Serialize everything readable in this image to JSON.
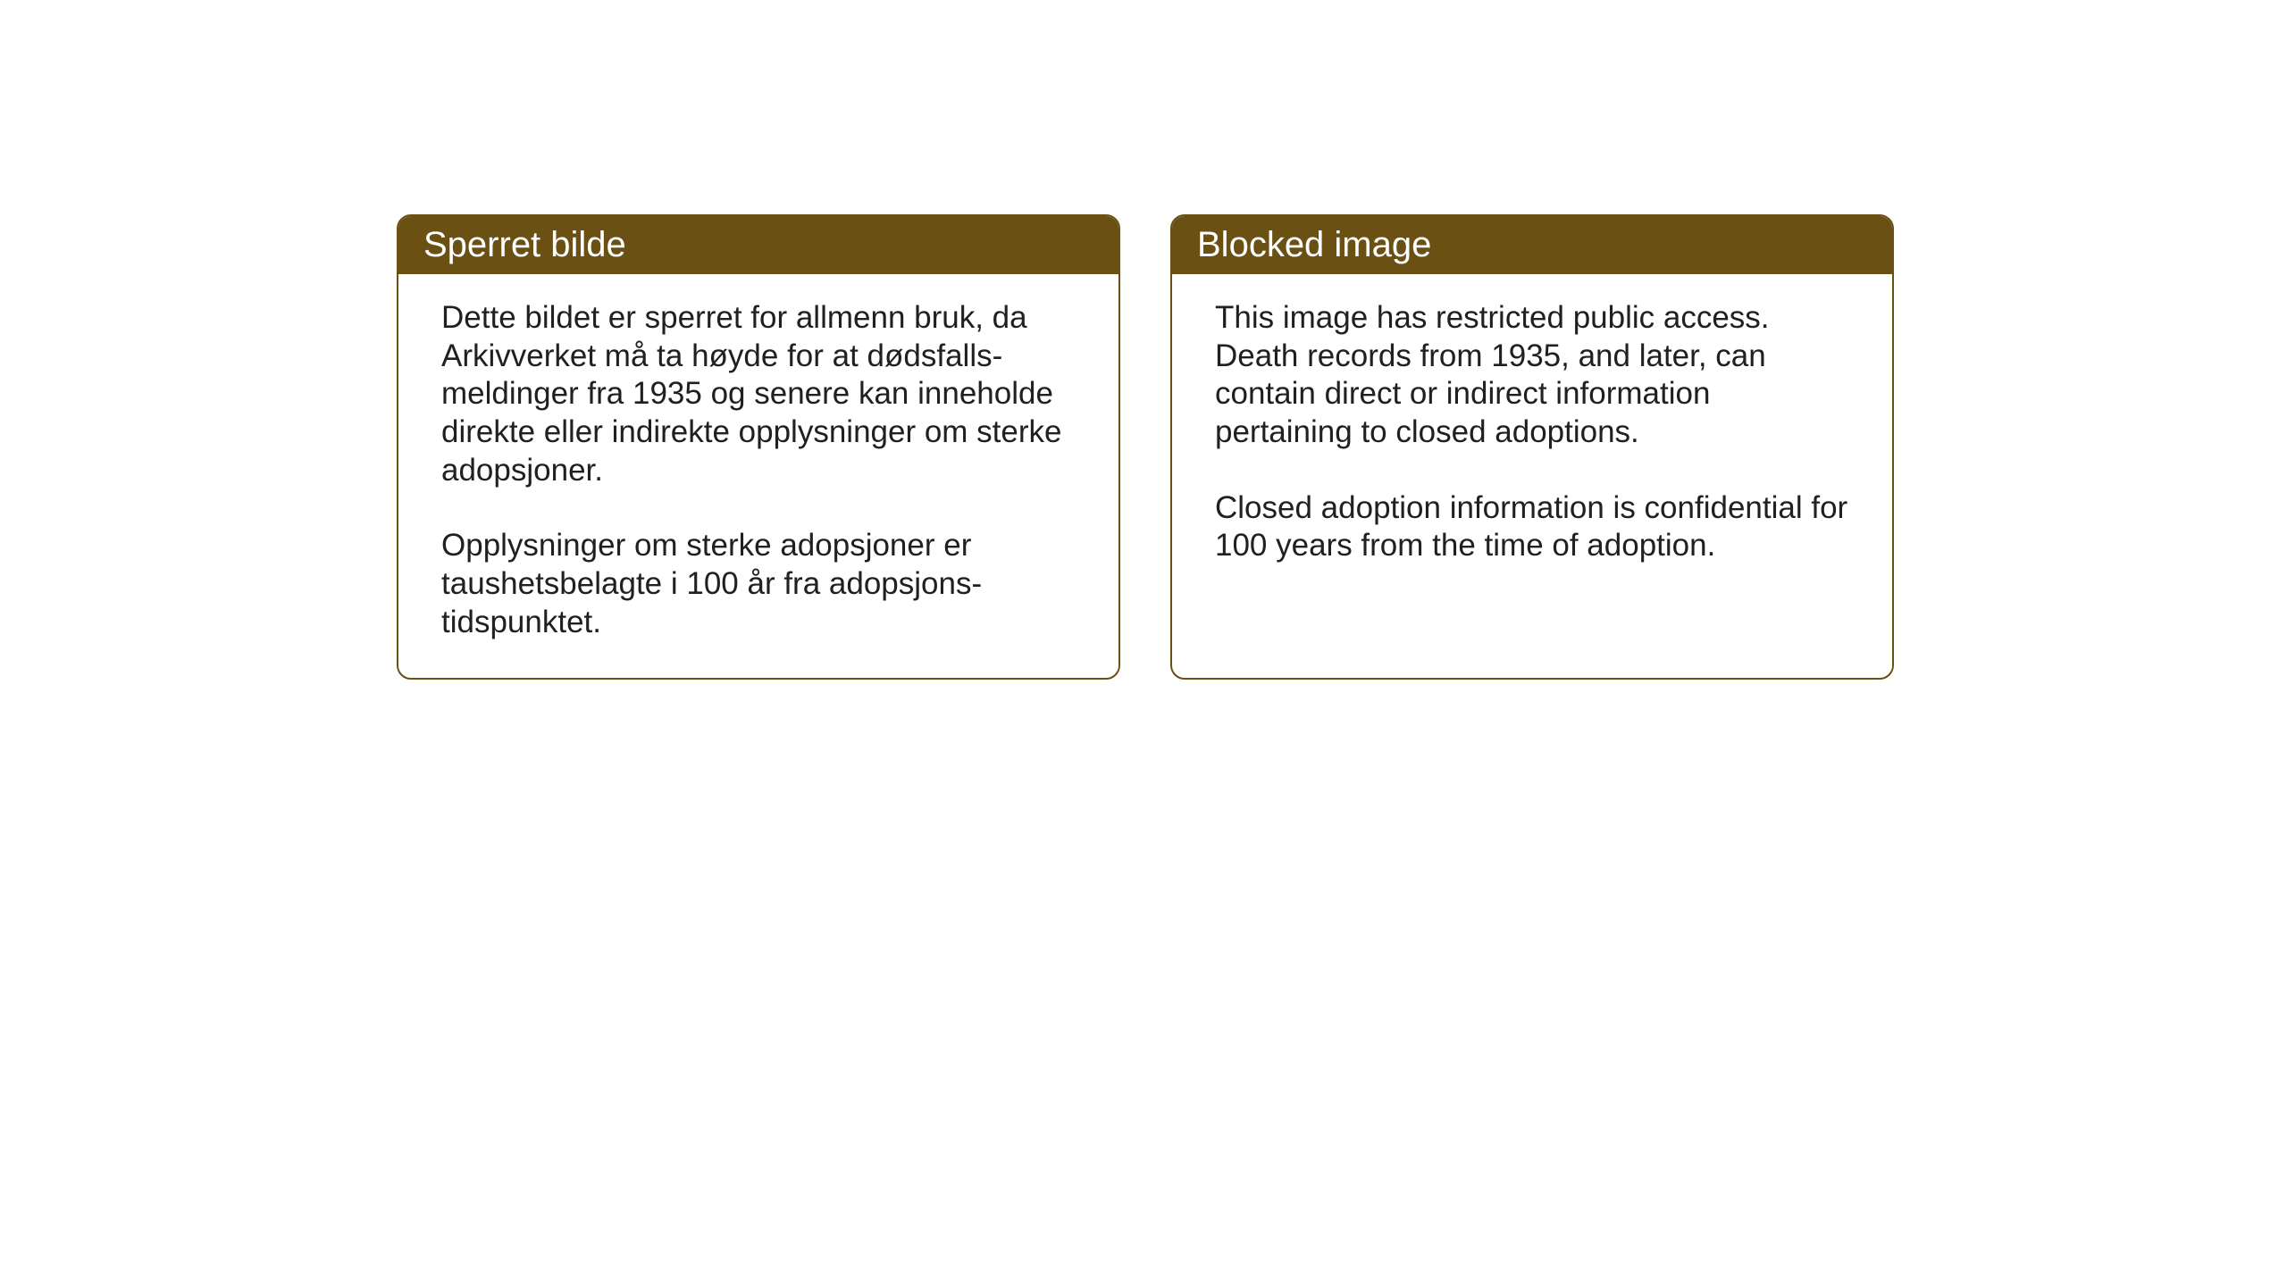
{
  "layout": {
    "background_color": "#ffffff",
    "card_border_color": "#6b5013",
    "card_header_bg": "#6b5013",
    "card_header_text_color": "#ffffff",
    "card_body_text_color": "#202020",
    "card_border_radius": 16,
    "header_fontsize": 40,
    "body_fontsize": 35
  },
  "cards": [
    {
      "title": "Sperret bilde",
      "paragraphs": [
        "Dette bildet er sperret for allmenn bruk, da Arkivverket må ta høyde for at dødsfalls-meldinger fra 1935 og senere kan inneholde direkte eller indirekte opplysninger om sterke adopsjoner.",
        "Opplysninger om sterke adopsjoner er taushetsbelagte i 100 år fra adopsjons-tidspunktet."
      ]
    },
    {
      "title": "Blocked image",
      "paragraphs": [
        "This image has restricted public access. Death records from 1935, and later, can contain direct or indirect information pertaining to closed adoptions.",
        "Closed adoption information is confidential for 100 years from the time of adoption."
      ]
    }
  ]
}
